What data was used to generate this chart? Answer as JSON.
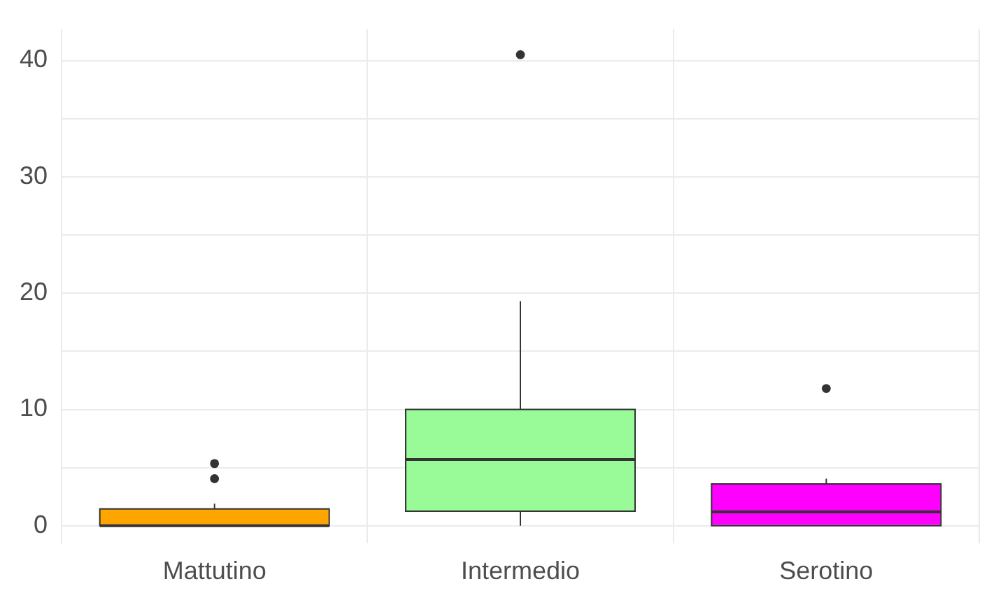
{
  "chart_data": {
    "type": "box",
    "categories": [
      "Mattutino",
      "Intermedio",
      "Serotino"
    ],
    "colors": [
      "#ffa500",
      "#98fb98",
      "#ff00ff"
    ],
    "boxes": [
      {
        "low": 0,
        "q1": 0,
        "median": 0,
        "q3": 1.45,
        "high": 1.9,
        "outliers": [
          4.05,
          5.35
        ]
      },
      {
        "low": 0,
        "q1": 1.25,
        "median": 5.7,
        "q3": 10,
        "high": 19.3,
        "outliers": [
          40.5
        ]
      },
      {
        "low": 0,
        "q1": 0,
        "median": 1.2,
        "q3": 3.6,
        "high": 4.05,
        "outliers": [
          11.8
        ]
      }
    ],
    "ylim": [
      -1.5,
      42.7
    ],
    "yticks": [
      0,
      {
        "value": 5,
        "label": null
      },
      10,
      {
        "value": 15,
        "label": null
      },
      20,
      {
        "value": 25,
        "label": null
      },
      30,
      {
        "value": 35,
        "label": null
      },
      40
    ],
    "grid": true
  }
}
